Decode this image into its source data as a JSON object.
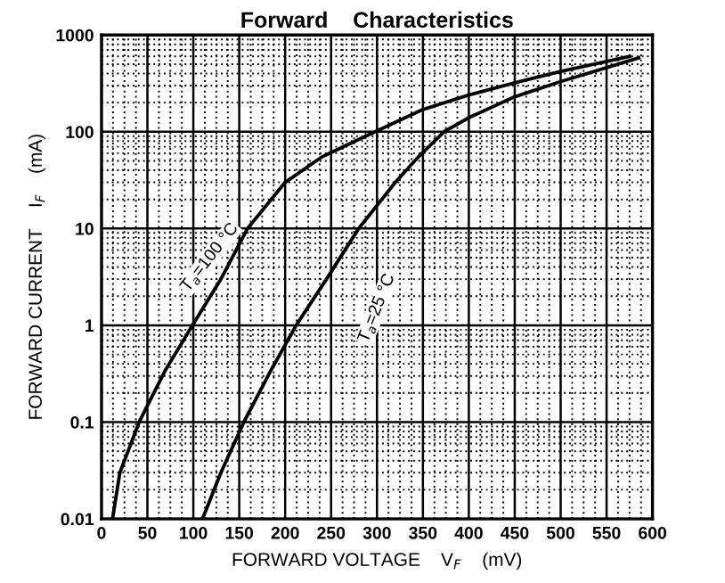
{
  "chart_data": {
    "type": "line",
    "title": "Forward    Characteristics",
    "xlabel": "FORWARD VOLTAGE    V$_{F}$    (mV)",
    "ylabel": "FORWARD CURRENT    I$_{F}$    (mA)",
    "series": [
      {
        "color": "#000000",
        "x": [
          12,
          20,
          41,
          70,
          99,
          130,
          159,
          200,
          240,
          298,
          350,
          400,
          450,
          500,
          575
        ],
        "values": [
          0.01,
          0.03,
          0.1,
          0.35,
          1,
          3,
          10,
          30,
          55,
          100,
          170,
          240,
          320,
          420,
          600
        ]
      },
      {
        "color": "#000000",
        "x": [
          110,
          130,
          155,
          185,
          212,
          245,
          280,
          320,
          345,
          373,
          400,
          450,
          500,
          585
        ],
        "values": [
          0.01,
          0.03,
          0.1,
          0.35,
          1,
          3,
          10,
          30,
          55,
          100,
          140,
          230,
          330,
          580
        ]
      }
    ],
    "annotations": [
      {
        "text": "T$_{a}$=100 °C",
        "x": 118,
        "y": 5
      },
      {
        "text": "T$_{a}$=25 °C",
        "x": 300,
        "y": 1.5
      }
    ],
    "xlim": [
      0,
      600
    ],
    "xticks": [
      0,
      50,
      100,
      150,
      200,
      250,
      300,
      350,
      400,
      450,
      500,
      550,
      600
    ],
    "ylim": [
      0.01,
      1000
    ],
    "yticks": [
      0.01,
      0.1,
      1,
      10,
      100,
      1000
    ],
    "log": "y",
    "grid": true,
    "legend": false,
    "marker": "none",
    "line_style": "solid"
  }
}
